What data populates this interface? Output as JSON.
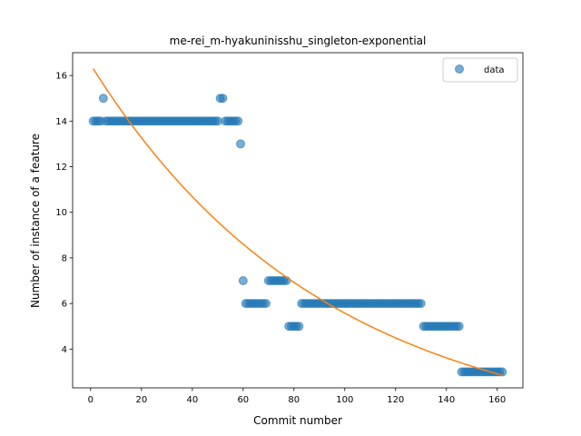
{
  "chart_data": {
    "type": "scatter",
    "title": "me-rei_m-hyakuninisshu_singleton-exponential",
    "xlabel": "Commit number",
    "ylabel": "Number of instance of a feature",
    "xlim": [
      -7.1,
      170.1
    ],
    "ylim": [
      2.3,
      17.0
    ],
    "xticks": [
      0,
      20,
      40,
      60,
      80,
      100,
      120,
      140,
      160
    ],
    "yticks": [
      4,
      6,
      8,
      10,
      12,
      14,
      16
    ],
    "grid": false,
    "legend": {
      "placement": "top-right",
      "entries": [
        "data"
      ]
    },
    "colors": {
      "data": "#1f77b4",
      "fit": "#ff7f0e"
    },
    "series": [
      {
        "name": "data",
        "kind": "scatter",
        "segments": [
          {
            "x0": 1,
            "x1": 4,
            "y": 14
          },
          {
            "x0": 5,
            "x1": 5,
            "y": 15
          },
          {
            "x0": 6,
            "x1": 50,
            "y": 14
          },
          {
            "x0": 51,
            "x1": 52,
            "y": 15
          },
          {
            "x0": 53,
            "x1": 58,
            "y": 14
          },
          {
            "x0": 59,
            "x1": 59,
            "y": 13
          },
          {
            "x0": 60,
            "x1": 60,
            "y": 7
          },
          {
            "x0": 61,
            "x1": 69,
            "y": 6
          },
          {
            "x0": 70,
            "x1": 77,
            "y": 7
          },
          {
            "x0": 78,
            "x1": 82,
            "y": 5
          },
          {
            "x0": 83,
            "x1": 130,
            "y": 6
          },
          {
            "x0": 131,
            "x1": 145,
            "y": 5
          },
          {
            "x0": 146,
            "x1": 162,
            "y": 3
          }
        ]
      },
      {
        "kind": "line",
        "model": "exponential",
        "x_range": [
          1,
          162
        ],
        "y_start": 16.3,
        "y_end": 2.85
      }
    ]
  }
}
